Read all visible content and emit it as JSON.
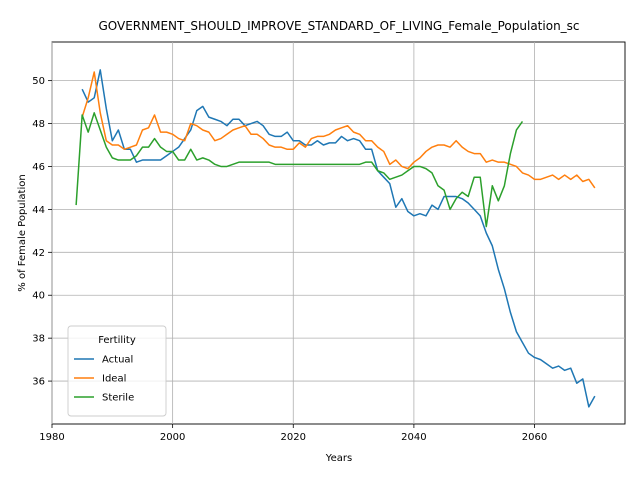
{
  "chart_data": {
    "type": "line",
    "title": "GOVERNMENT_SHOULD_IMPROVE_STANDARD_OF_LIVING_Female_Population_sc",
    "xlabel": "Years",
    "ylabel": "% of Female Population",
    "xlim": [
      1980,
      2075
    ],
    "ylim": [
      34,
      51.8
    ],
    "xticks": [
      1980,
      2000,
      2020,
      2040,
      2060
    ],
    "yticks": [
      36,
      38,
      40,
      42,
      44,
      46,
      48,
      50
    ],
    "grid": true,
    "legend": {
      "title": "Fertility",
      "placement": "lower-left"
    },
    "series": [
      {
        "name": "Actual",
        "color": "#1f77b4",
        "x": [
          1985,
          1986,
          1987,
          1988,
          1989,
          1990,
          1991,
          1992,
          1993,
          1994,
          1995,
          1996,
          1997,
          1998,
          1999,
          2000,
          2001,
          2002,
          2003,
          2004,
          2005,
          2006,
          2007,
          2008,
          2009,
          2010,
          2011,
          2012,
          2013,
          2014,
          2015,
          2016,
          2017,
          2018,
          2019,
          2020,
          2021,
          2022,
          2023,
          2024,
          2025,
          2026,
          2027,
          2028,
          2029,
          2030,
          2031,
          2032,
          2033,
          2034,
          2035,
          2036,
          2037,
          2038,
          2039,
          2040,
          2041,
          2042,
          2043,
          2044,
          2045,
          2046,
          2047,
          2048,
          2049,
          2050,
          2051,
          2052,
          2053,
          2054,
          2055,
          2056,
          2057,
          2058,
          2059,
          2060,
          2061,
          2062,
          2063,
          2064,
          2065,
          2066,
          2067,
          2068,
          2069,
          2070
        ],
        "y": [
          49.6,
          49.0,
          49.2,
          50.5,
          48.7,
          47.2,
          47.7,
          46.8,
          46.8,
          46.2,
          46.3,
          46.3,
          46.3,
          46.3,
          46.5,
          46.7,
          46.9,
          47.3,
          47.7,
          48.6,
          48.8,
          48.3,
          48.2,
          48.1,
          47.9,
          48.2,
          48.2,
          47.9,
          48.0,
          48.1,
          47.9,
          47.5,
          47.4,
          47.4,
          47.6,
          47.2,
          47.2,
          47.0,
          47.0,
          47.2,
          47.0,
          47.1,
          47.1,
          47.4,
          47.2,
          47.3,
          47.2,
          46.8,
          46.8,
          45.8,
          45.5,
          45.2,
          44.1,
          44.5,
          43.9,
          43.7,
          43.8,
          43.7,
          44.2,
          44.0,
          44.6,
          44.6,
          44.6,
          44.5,
          44.3,
          44.0,
          43.7,
          42.9,
          42.3,
          41.2,
          40.3,
          39.2,
          38.3,
          37.8,
          37.3,
          37.1,
          37.0,
          36.8,
          36.6,
          36.7,
          36.5,
          36.6,
          35.9,
          36.1,
          34.8,
          35.3
        ]
      },
      {
        "name": "Ideal",
        "color": "#ff7f0e",
        "x": [
          1985,
          1986,
          1987,
          1988,
          1989,
          1990,
          1991,
          1992,
          1993,
          1994,
          1995,
          1996,
          1997,
          1998,
          1999,
          2000,
          2001,
          2002,
          2003,
          2004,
          2005,
          2006,
          2007,
          2008,
          2009,
          2010,
          2011,
          2012,
          2013,
          2014,
          2015,
          2016,
          2017,
          2018,
          2019,
          2020,
          2021,
          2022,
          2023,
          2024,
          2025,
          2026,
          2027,
          2028,
          2029,
          2030,
          2031,
          2032,
          2033,
          2034,
          2035,
          2036,
          2037,
          2038,
          2039,
          2040,
          2041,
          2042,
          2043,
          2044,
          2045,
          2046,
          2047,
          2048,
          2049,
          2050,
          2051,
          2052,
          2053,
          2054,
          2055,
          2056,
          2057,
          2058,
          2059,
          2060,
          2061,
          2062,
          2063,
          2064,
          2065,
          2066,
          2067,
          2068,
          2069,
          2070
        ],
        "y": [
          48.3,
          49.2,
          50.4,
          48.5,
          47.2,
          47.0,
          47.0,
          46.8,
          46.9,
          47.0,
          47.7,
          47.8,
          48.4,
          47.6,
          47.6,
          47.5,
          47.3,
          47.2,
          48.0,
          47.9,
          47.7,
          47.6,
          47.2,
          47.3,
          47.5,
          47.7,
          47.8,
          47.9,
          47.5,
          47.5,
          47.3,
          47.0,
          46.9,
          46.9,
          46.8,
          46.8,
          47.1,
          46.9,
          47.3,
          47.4,
          47.4,
          47.5,
          47.7,
          47.8,
          47.9,
          47.6,
          47.5,
          47.2,
          47.2,
          46.9,
          46.7,
          46.1,
          46.3,
          46.0,
          45.9,
          46.2,
          46.4,
          46.7,
          46.9,
          47.0,
          47.0,
          46.9,
          47.2,
          46.9,
          46.7,
          46.6,
          46.6,
          46.2,
          46.3,
          46.2,
          46.2,
          46.1,
          46.0,
          45.7,
          45.6,
          45.4,
          45.4,
          45.5,
          45.6,
          45.4,
          45.6,
          45.4,
          45.6,
          45.3,
          45.4,
          45.0
        ]
      },
      {
        "name": "Sterile",
        "color": "#2ca02c",
        "x": [
          1984,
          1985,
          1986,
          1987,
          1988,
          1989,
          1990,
          1991,
          1992,
          1993,
          1994,
          1995,
          1996,
          1997,
          1998,
          1999,
          2000,
          2001,
          2002,
          2003,
          2004,
          2005,
          2006,
          2007,
          2008,
          2009,
          2010,
          2011,
          2012,
          2013,
          2014,
          2015,
          2016,
          2017,
          2018,
          2019,
          2020,
          2021,
          2022,
          2023,
          2024,
          2025,
          2026,
          2027,
          2028,
          2029,
          2030,
          2031,
          2032,
          2033,
          2034,
          2035,
          2036,
          2037,
          2038,
          2039,
          2040,
          2041,
          2042,
          2043,
          2044,
          2045,
          2046,
          2047,
          2048,
          2049,
          2050,
          2051,
          2052,
          2053,
          2054,
          2055,
          2056,
          2057,
          2058
        ],
        "y": [
          44.2,
          48.4,
          47.6,
          48.5,
          47.7,
          46.9,
          46.4,
          46.3,
          46.3,
          46.3,
          46.5,
          46.9,
          46.9,
          47.3,
          46.9,
          46.7,
          46.7,
          46.3,
          46.3,
          46.8,
          46.3,
          46.4,
          46.3,
          46.1,
          46.0,
          46.0,
          46.1,
          46.2,
          46.2,
          46.2,
          46.2,
          46.2,
          46.2,
          46.1,
          46.1,
          46.1,
          46.1,
          46.1,
          46.1,
          46.1,
          46.1,
          46.1,
          46.1,
          46.1,
          46.1,
          46.1,
          46.1,
          46.1,
          46.2,
          46.2,
          45.8,
          45.7,
          45.4,
          45.5,
          45.6,
          45.8,
          46.0,
          46.0,
          45.9,
          45.7,
          45.1,
          44.9,
          44.0,
          44.5,
          44.8,
          44.6,
          45.5,
          45.5,
          43.2,
          45.1,
          44.4,
          45.1,
          46.6,
          47.7,
          48.1
        ]
      }
    ]
  }
}
